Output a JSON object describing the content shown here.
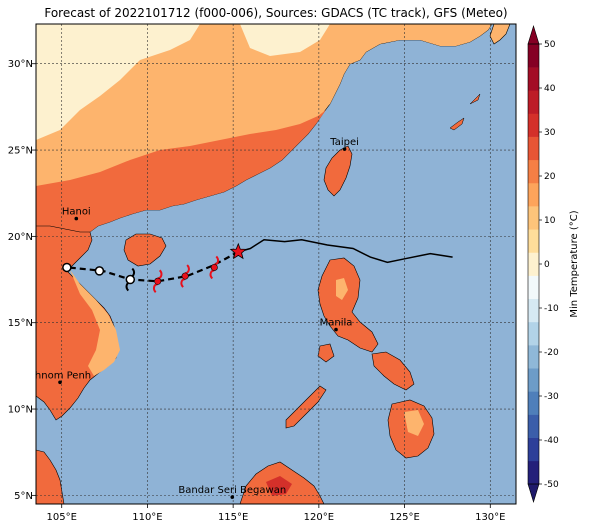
{
  "title": "Forecast of 2022101712 (f000-006), Sources: GDACS (TC track), GFS (Meteo)",
  "colors": {
    "ocean": "#8fb3d6",
    "t_m30_m20": "#6d9cc8",
    "t_m10_0": "#cfe2ef",
    "t_0_10": "#fdf1cf",
    "t_10_20": "#fdb46d",
    "t_20_30": "#f16a3d",
    "t_30_40": "#d4302a",
    "t_40_50": "#990024",
    "land_outline": "#000000",
    "storm_symbol": "#e8101c"
  },
  "x_ticks": [
    "105°E",
    "110°E",
    "115°E",
    "120°E",
    "125°E",
    "130°E"
  ],
  "y_ticks": [
    "5°N",
    "10°N",
    "15°N",
    "20°N",
    "25°N",
    "30°N"
  ],
  "cities": [
    {
      "name": "Taipei",
      "lon": 121.5,
      "lat": 25.05
    },
    {
      "name": "Hanoi",
      "lon": 105.85,
      "lat": 21.03
    },
    {
      "name": "Manila",
      "lon": 121.0,
      "lat": 14.6
    },
    {
      "name": "Phnom Penh",
      "lon": 104.9,
      "lat": 11.55
    },
    {
      "name": "Bandar Seri Begawan",
      "lon": 114.95,
      "lat": 4.9
    }
  ],
  "colorbar": {
    "label": "Min Temperature (°C)",
    "ticks": [
      "-50",
      "-40",
      "-30",
      "-20",
      "-10",
      "0",
      "10",
      "20",
      "30",
      "40",
      "50"
    ],
    "colors": [
      "#24207a",
      "#2d3f99",
      "#3b5eaa",
      "#4f7fba",
      "#6d9cc8",
      "#8fb8d8",
      "#b2d3e8",
      "#d6e9f3",
      "#f2f9fb",
      "#fdf1cf",
      "#fedd9a",
      "#fdc47a",
      "#fda45b",
      "#f57f45",
      "#e85535",
      "#d4302a",
      "#bd1c27",
      "#a30d26",
      "#850024"
    ]
  },
  "track": {
    "past": [
      [
        127.8,
        18.8
      ],
      [
        126.5,
        19.0
      ],
      [
        125.0,
        18.7
      ],
      [
        124.0,
        18.5
      ],
      [
        123.0,
        18.8
      ],
      [
        122.0,
        19.3
      ],
      [
        120.5,
        19.5
      ],
      [
        119.0,
        19.8
      ],
      [
        118.0,
        19.7
      ],
      [
        116.8,
        19.8
      ],
      [
        116.0,
        19.3
      ],
      [
        115.3,
        19.1
      ]
    ],
    "forecast": [
      [
        115.3,
        19.1
      ],
      [
        113.8,
        18.3
      ],
      [
        112.3,
        17.7
      ],
      [
        110.6,
        17.4
      ],
      [
        109.0,
        17.5
      ],
      [
        107.4,
        18.0
      ],
      [
        105.4,
        18.2
      ]
    ],
    "current_position": [
      115.3,
      19.1
    ],
    "storm_points": [
      [
        113.9,
        18.2
      ],
      [
        112.2,
        17.7
      ],
      [
        110.6,
        17.4
      ]
    ],
    "weak_storm_point": [
      109.0,
      17.5
    ],
    "open_points": [
      [
        109.0,
        17.5
      ],
      [
        107.2,
        18.0
      ],
      [
        105.3,
        18.2
      ]
    ]
  }
}
